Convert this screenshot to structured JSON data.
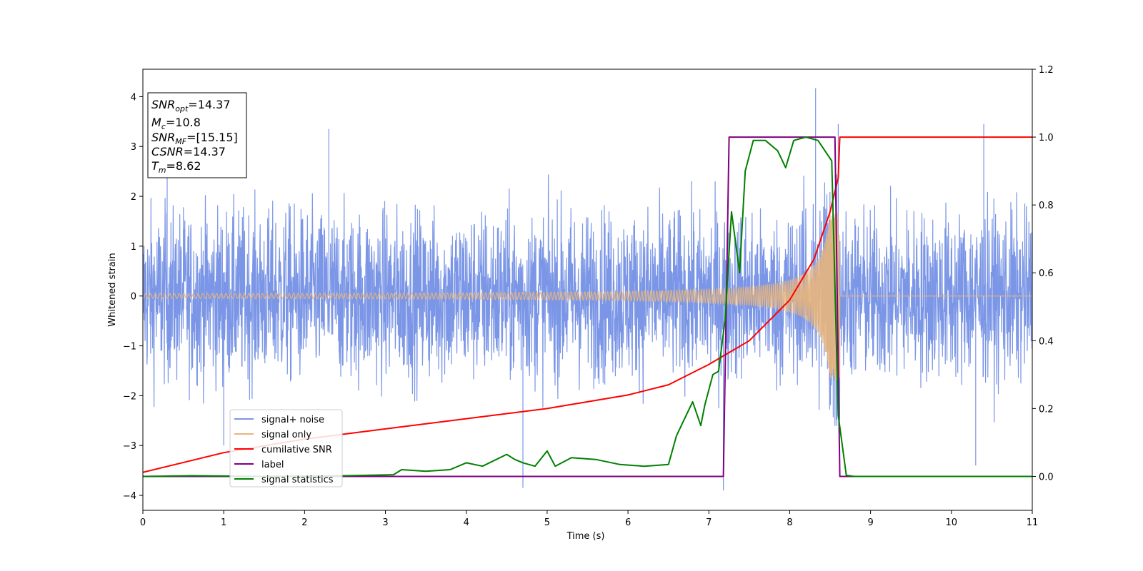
{
  "chart_data": {
    "type": "line",
    "xlabel": "Time (s)",
    "ylabel": "Whitened strain",
    "xlim": [
      0,
      11
    ],
    "ylim": [
      -4.3,
      4.55
    ],
    "y2lim": [
      -0.1,
      1.2
    ],
    "x_ticks": [
      0,
      1,
      2,
      3,
      4,
      5,
      6,
      7,
      8,
      9,
      10,
      11
    ],
    "y_ticks": [
      -4,
      -3,
      -2,
      -1,
      0,
      1,
      2,
      3,
      4
    ],
    "y2_ticks": [
      0.0,
      0.2,
      0.4,
      0.6,
      0.8,
      1.0,
      1.2
    ],
    "x_tick_labels": [
      "0",
      "1",
      "2",
      "3",
      "4",
      "5",
      "6",
      "7",
      "8",
      "9",
      "10",
      "11"
    ],
    "y_tick_labels": [
      "−4",
      "−3",
      "−2",
      "−1",
      "0",
      "1",
      "2",
      "3",
      "4"
    ],
    "y2_tick_labels": [
      "0.0",
      "0.2",
      "0.4",
      "0.6",
      "0.8",
      "1.0",
      "1.2"
    ],
    "grid": false,
    "legend_position": "lower-left",
    "colors": {
      "signal_noise": "#7b96e6",
      "signal_only": "#e8b57c",
      "cumulative_snr": "#ff0000",
      "label": "#800080",
      "signal_statistics": "#008000"
    },
    "annotation": {
      "lines": [
        {
          "base": "SNR",
          "sub": "opt",
          "value": "=14.37"
        },
        {
          "base": "M",
          "sub": "c",
          "value": "=10.8"
        },
        {
          "base": "SNR",
          "sub": "MF",
          "value": "=[15.15]"
        },
        {
          "base": "CSNR",
          "sub": "",
          "value": "=14.37"
        },
        {
          "base": "T",
          "sub": "m",
          "value": "=8.62"
        }
      ]
    },
    "series": [
      {
        "name": "signal+ noise",
        "axis": "left",
        "description_points": [
          [
            0,
            0
          ],
          [
            11,
            0
          ]
        ],
        "noise_range": [
          -2.6,
          2.6
        ],
        "peak_values": [
          [
            0.3,
            2.9
          ],
          [
            2.3,
            3.35
          ],
          [
            4.7,
            -3.85
          ],
          [
            8.32,
            4.17
          ],
          [
            8.6,
            3.45
          ],
          [
            10.4,
            3.45
          ],
          [
            7.18,
            -3.9
          ],
          [
            1.0,
            -3.0
          ],
          [
            10.3,
            -3.4
          ]
        ]
      },
      {
        "name": "signal only",
        "axis": "left",
        "chirp_end": 8.62,
        "amplitude_start": 0.03,
        "amplitude_end": 1.7
      },
      {
        "name": "cumilative SNR",
        "axis": "right",
        "x": [
          0,
          1,
          2,
          3,
          4,
          5,
          6,
          6.5,
          7,
          7.5,
          8,
          8.3,
          8.5,
          8.6,
          8.62,
          11
        ],
        "y": [
          0.012,
          0.07,
          0.11,
          0.14,
          0.17,
          0.2,
          0.24,
          0.27,
          0.33,
          0.4,
          0.52,
          0.64,
          0.78,
          0.88,
          1.0,
          1.0
        ]
      },
      {
        "name": "label",
        "axis": "right",
        "x": [
          0,
          7.18,
          7.25,
          8.56,
          8.62,
          11
        ],
        "y": [
          0,
          0,
          1,
          1,
          0,
          0
        ]
      },
      {
        "name": "signal statistics",
        "axis": "right",
        "x": [
          0,
          0.6,
          1.5,
          2.5,
          3.1,
          3.2,
          3.5,
          3.8,
          4.0,
          4.2,
          4.5,
          4.6,
          4.7,
          4.85,
          5.0,
          5.1,
          5.3,
          5.6,
          5.9,
          6.2,
          6.5,
          6.6,
          6.7,
          6.8,
          6.9,
          6.95,
          7.05,
          7.12,
          7.2,
          7.28,
          7.38,
          7.45,
          7.55,
          7.7,
          7.85,
          7.95,
          8.05,
          8.2,
          8.35,
          8.52,
          8.6,
          8.7,
          8.8,
          11
        ],
        "y": [
          0,
          0.002,
          0.0,
          0.002,
          0.005,
          0.02,
          0.015,
          0.02,
          0.04,
          0.03,
          0.065,
          0.05,
          0.04,
          0.03,
          0.075,
          0.03,
          0.055,
          0.05,
          0.035,
          0.03,
          0.035,
          0.12,
          0.17,
          0.22,
          0.15,
          0.21,
          0.3,
          0.31,
          0.46,
          0.78,
          0.6,
          0.9,
          0.99,
          0.99,
          0.96,
          0.91,
          0.99,
          1.0,
          0.99,
          0.93,
          0.18,
          0.003,
          0.0,
          0.0
        ]
      }
    ]
  }
}
